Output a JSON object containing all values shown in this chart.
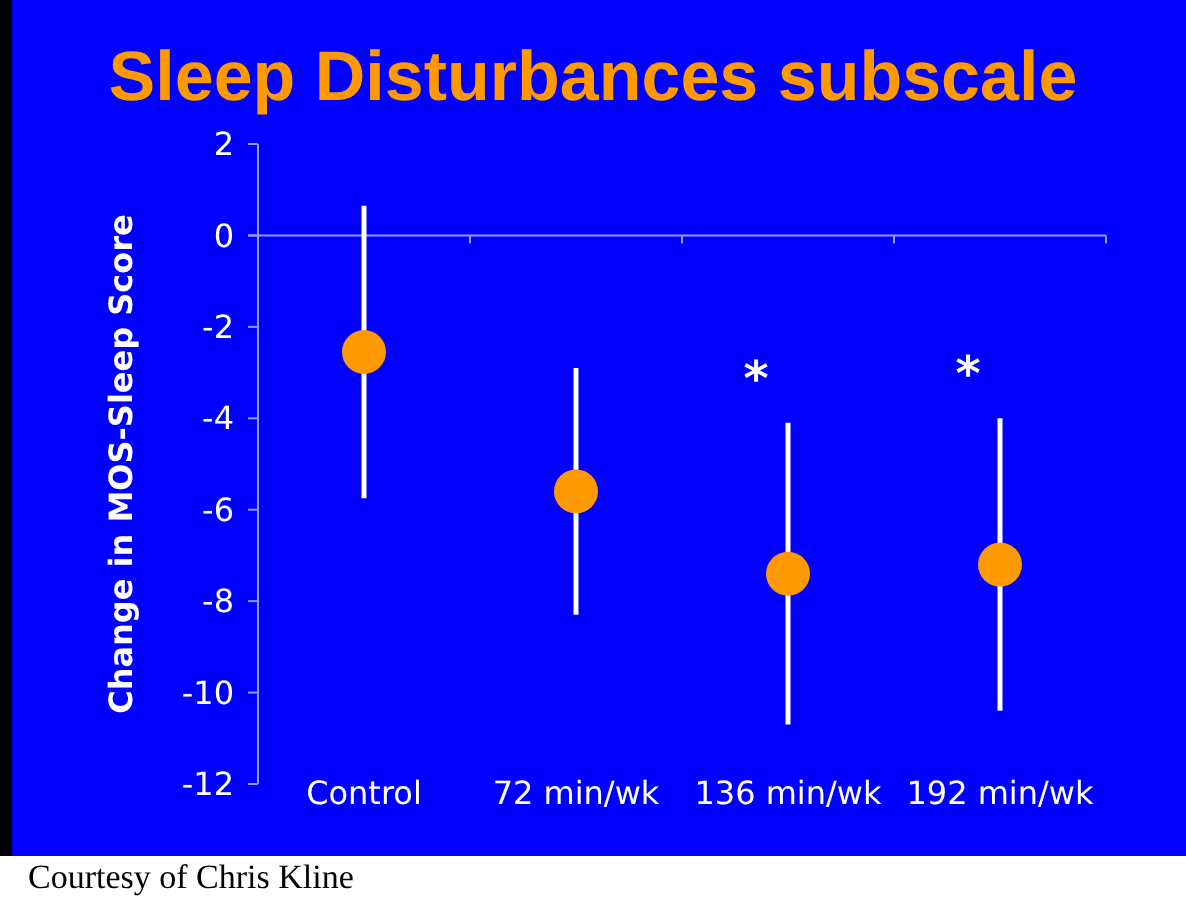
{
  "chart_data": {
    "type": "scatter",
    "title": "Sleep Disturbances subscale",
    "ylabel": "Change in MOS-Sleep Score",
    "categories": [
      "Control",
      "72 min/wk",
      "136 min/wk",
      "192 min/wk"
    ],
    "values": [
      -2.55,
      -5.6,
      -7.4,
      -7.2
    ],
    "errors": [
      3.2,
      2.7,
      3.3,
      3.2
    ],
    "color": "#ff9900",
    "marker": "circle",
    "ylim": [
      -12,
      2
    ],
    "yticks": [
      -12,
      -10,
      -8,
      -6,
      -4,
      -2,
      0,
      2
    ],
    "value_labels": [
      null,
      null,
      "*",
      "*"
    ],
    "ref_lines": [
      {
        "axis": "y",
        "value": 0,
        "color": "#9999ff"
      }
    ],
    "annotations": [
      "Courtesy of Chris Kline"
    ]
  }
}
